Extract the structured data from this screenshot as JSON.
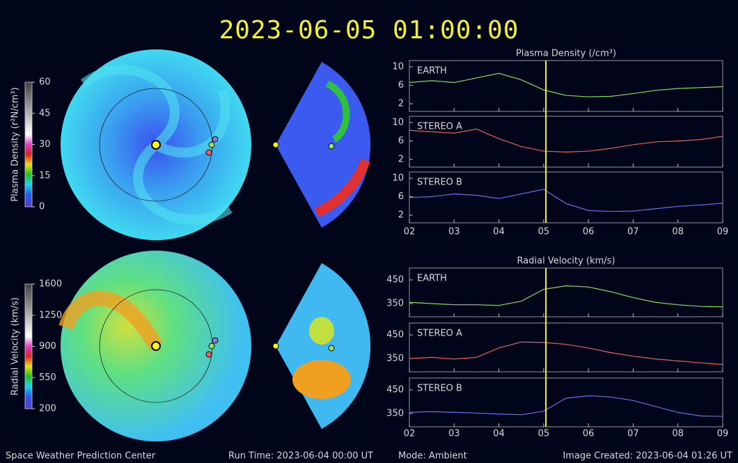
{
  "title": "2023-06-05 01:00:00",
  "footer": {
    "center": "Space Weather Prediction Center",
    "run_time": "Run Time: 2023-06-04 00:00 UT",
    "mode": "Mode: Ambient",
    "created": "Image Created: 2023-06-04 01:26 UT"
  },
  "chart_data": [
    {
      "type": "colorbar",
      "label": "Plasma Density (r²N/cm³)",
      "ylim": [
        0,
        60
      ],
      "yticks": [
        0,
        15,
        30,
        45,
        60
      ]
    },
    {
      "type": "colorbar",
      "label": "Radial Velocity (km/s)",
      "ylim": [
        200,
        1600
      ],
      "yticks": [
        200,
        550,
        900,
        1250,
        1600
      ]
    },
    {
      "type": "line",
      "title": "Plasma Density (/cm³)",
      "now": 5.05,
      "x": [
        2,
        2.5,
        3,
        3.5,
        4,
        4.5,
        5,
        5.5,
        6,
        6.5,
        7,
        7.5,
        8,
        8.5,
        9
      ],
      "xlim": [
        2,
        9
      ],
      "xticks": [
        {
          "value": 2,
          "label": "02"
        },
        {
          "value": 3,
          "label": "03"
        },
        {
          "value": 4,
          "label": "04"
        },
        {
          "value": 5,
          "label": "05"
        },
        {
          "value": 6,
          "label": "06"
        },
        {
          "value": 7,
          "label": "07"
        },
        {
          "value": 8,
          "label": "08"
        },
        {
          "value": 9,
          "label": "09"
        }
      ],
      "ylim": [
        0.34,
        11.36
      ],
      "yticks": [
        2,
        6,
        10
      ],
      "series": [
        {
          "name": "EARTH",
          "color": "#7fe05a",
          "values": [
            6.6,
            7.0,
            6.6,
            7.6,
            8.6,
            7.2,
            5.0,
            3.8,
            3.5,
            3.6,
            4.2,
            4.9,
            5.3,
            5.5,
            5.7
          ]
        },
        {
          "name": "STEREO A",
          "color": "#e5605a",
          "values": [
            8.3,
            8.0,
            7.7,
            8.6,
            6.5,
            4.8,
            3.8,
            3.6,
            3.8,
            4.4,
            5.2,
            5.8,
            6.0,
            6.3,
            7.0
          ]
        },
        {
          "name": "STEREO B",
          "color": "#6a6ef0",
          "values": [
            5.8,
            6.0,
            6.6,
            6.3,
            5.6,
            6.6,
            7.6,
            4.5,
            3.0,
            2.8,
            2.9,
            3.4,
            3.9,
            4.2,
            4.6
          ]
        }
      ]
    },
    {
      "type": "line",
      "title": "Radial Velocity (km/s)",
      "now": 5.05,
      "x": [
        2,
        2.5,
        3,
        3.5,
        4,
        4.5,
        5,
        5.5,
        6,
        6.5,
        7,
        7.5,
        8,
        8.5,
        9
      ],
      "xlim": [
        2,
        9
      ],
      "xticks": [
        {
          "value": 2,
          "label": "02"
        },
        {
          "value": 3,
          "label": "03"
        },
        {
          "value": 4,
          "label": "04"
        },
        {
          "value": 5,
          "label": "05"
        },
        {
          "value": 6,
          "label": "06"
        },
        {
          "value": 7,
          "label": "07"
        },
        {
          "value": 8,
          "label": "08"
        },
        {
          "value": 9,
          "label": "09"
        }
      ],
      "ylim": [
        294,
        500
      ],
      "yticks": [
        350,
        450
      ],
      "series": [
        {
          "name": "EARTH",
          "color": "#7fe05a",
          "values": [
            355,
            350,
            345,
            345,
            342,
            360,
            410,
            425,
            420,
            400,
            375,
            355,
            345,
            338,
            336
          ]
        },
        {
          "name": "STEREO A",
          "color": "#e5605a",
          "values": [
            350,
            355,
            348,
            355,
            395,
            420,
            418,
            410,
            395,
            375,
            360,
            348,
            340,
            332,
            325
          ]
        },
        {
          "name": "STEREO B",
          "color": "#6a6ef0",
          "values": [
            355,
            358,
            355,
            352,
            348,
            345,
            360,
            415,
            425,
            420,
            405,
            380,
            355,
            340,
            338
          ]
        }
      ]
    }
  ]
}
